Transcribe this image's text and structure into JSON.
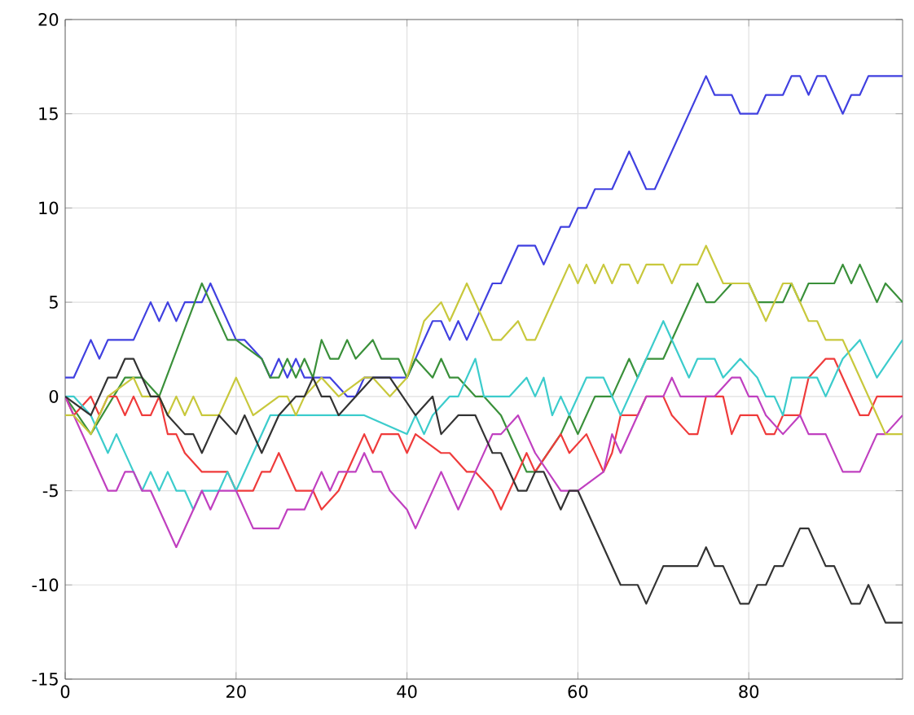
{
  "chart_data": {
    "type": "line",
    "xlim": [
      0,
      98
    ],
    "ylim": [
      -15,
      20
    ],
    "xticks": [
      0,
      20,
      40,
      60,
      80
    ],
    "yticks": [
      -15,
      -10,
      -5,
      0,
      5,
      10,
      15,
      20
    ],
    "grid": true,
    "series": [
      {
        "color": "#4040e0",
        "x": [
          0,
          1,
          3,
          4,
          5,
          8,
          10,
          11,
          12,
          13,
          14,
          16,
          17,
          20,
          21,
          23,
          24,
          25,
          26,
          27,
          28,
          31,
          33,
          34,
          35,
          40,
          43,
          44,
          45,
          46,
          47,
          50,
          51,
          53,
          55,
          56,
          58,
          59,
          60,
          61,
          62,
          64,
          66,
          68,
          69,
          75,
          76,
          78,
          79,
          81,
          82,
          84,
          85,
          86,
          87,
          88,
          89,
          91,
          92,
          93,
          94,
          98
        ],
        "values": [
          1,
          1,
          3,
          2,
          3,
          3,
          5,
          4,
          5,
          4,
          5,
          5,
          6,
          3,
          3,
          2,
          1,
          2,
          1,
          2,
          1,
          1,
          0,
          0,
          1,
          1,
          4,
          4,
          3,
          4,
          3,
          6,
          6,
          8,
          8,
          7,
          9,
          9,
          10,
          10,
          11,
          11,
          13,
          11,
          11,
          17,
          16,
          16,
          15,
          15,
          16,
          16,
          17,
          17,
          16,
          17,
          17,
          15,
          16,
          16,
          17,
          17
        ]
      },
      {
        "color": "#3a903a",
        "x": [
          0,
          3,
          7,
          9,
          11,
          16,
          18,
          19,
          20,
          23,
          24,
          25,
          26,
          27,
          28,
          29,
          30,
          31,
          32,
          33,
          34,
          36,
          37,
          39,
          40,
          41,
          43,
          44,
          45,
          46,
          48,
          49,
          51,
          53,
          54,
          55,
          58,
          59,
          60,
          62,
          64,
          65,
          66,
          67,
          68,
          70,
          74,
          75,
          76,
          78,
          80,
          81,
          84,
          85,
          86,
          87,
          90,
          91,
          92,
          93,
          95,
          96,
          98
        ],
        "values": [
          0,
          -2,
          1,
          1,
          0,
          6,
          4,
          3,
          3,
          2,
          1,
          1,
          2,
          1,
          2,
          1,
          3,
          2,
          2,
          3,
          2,
          3,
          2,
          2,
          1,
          2,
          1,
          2,
          1,
          1,
          0,
          0,
          -1,
          -3,
          -4,
          -4,
          -2,
          -1,
          -2,
          0,
          0,
          1,
          2,
          1,
          2,
          2,
          6,
          5,
          5,
          6,
          6,
          5,
          5,
          6,
          5,
          6,
          6,
          7,
          6,
          7,
          5,
          6,
          5
        ]
      },
      {
        "color": "#ef3b3b",
        "x": [
          0,
          1,
          3,
          4,
          5,
          6,
          7,
          8,
          9,
          10,
          11,
          12,
          13,
          14,
          16,
          19,
          20,
          22,
          23,
          24,
          25,
          27,
          29,
          30,
          32,
          34,
          35,
          36,
          37,
          39,
          40,
          41,
          44,
          45,
          47,
          48,
          50,
          51,
          52,
          54,
          55,
          58,
          59,
          61,
          63,
          64,
          65,
          67,
          68,
          70,
          71,
          73,
          74,
          75,
          77,
          78,
          79,
          81,
          82,
          83,
          84,
          86,
          87,
          89,
          90,
          91,
          93,
          94,
          95,
          98
        ],
        "values": [
          0,
          -1,
          0,
          -1,
          0,
          0,
          -1,
          0,
          -1,
          -1,
          0,
          -2,
          -2,
          -3,
          -4,
          -4,
          -5,
          -5,
          -4,
          -4,
          -3,
          -5,
          -5,
          -6,
          -5,
          -3,
          -2,
          -3,
          -2,
          -2,
          -3,
          -2,
          -3,
          -3,
          -4,
          -4,
          -5,
          -6,
          -5,
          -3,
          -4,
          -2,
          -3,
          -2,
          -4,
          -3,
          -1,
          -1,
          0,
          0,
          -1,
          -2,
          -2,
          0,
          0,
          -2,
          -1,
          -1,
          -2,
          -2,
          -1,
          -1,
          1,
          2,
          2,
          1,
          -1,
          -1,
          0,
          0
        ]
      },
      {
        "color": "#3ccccc",
        "x": [
          0,
          1,
          3,
          5,
          6,
          8,
          9,
          10,
          11,
          12,
          13,
          14,
          15,
          16,
          18,
          19,
          20,
          22,
          24,
          25,
          30,
          31,
          35,
          40,
          41,
          42,
          43,
          45,
          46,
          48,
          49,
          52,
          54,
          55,
          56,
          57,
          58,
          59,
          61,
          63,
          65,
          70,
          73,
          74,
          76,
          77,
          79,
          81,
          82,
          83,
          84,
          85,
          88,
          89,
          91,
          93,
          95,
          98
        ],
        "values": [
          0,
          0,
          -1,
          -3,
          -2,
          -4,
          -5,
          -4,
          -5,
          -4,
          -5,
          -5,
          -6,
          -5,
          -5,
          -4,
          -5,
          -3,
          -1,
          -1,
          -1,
          -1,
          -1,
          -2,
          -1,
          -2,
          -1,
          0,
          0,
          2,
          0,
          0,
          1,
          0,
          1,
          -1,
          0,
          -1,
          1,
          1,
          -1,
          4,
          1,
          2,
          2,
          1,
          2,
          1,
          0,
          0,
          -1,
          1,
          1,
          0,
          2,
          3,
          1,
          3
        ]
      },
      {
        "color": "#c040c0",
        "x": [
          0,
          3,
          5,
          6,
          7,
          8,
          9,
          10,
          13,
          15,
          16,
          17,
          18,
          20,
          22,
          25,
          26,
          28,
          30,
          31,
          32,
          34,
          35,
          36,
          37,
          38,
          40,
          41,
          44,
          46,
          48,
          50,
          51,
          53,
          54,
          55,
          58,
          60,
          63,
          64,
          65,
          67,
          68,
          70,
          71,
          72,
          76,
          78,
          79,
          80,
          81,
          82,
          84,
          86,
          87,
          89,
          91,
          93,
          95,
          96,
          98
        ],
        "values": [
          0,
          -3,
          -5,
          -5,
          -4,
          -4,
          -5,
          -5,
          -8,
          -6,
          -5,
          -6,
          -5,
          -5,
          -7,
          -7,
          -6,
          -6,
          -4,
          -5,
          -4,
          -4,
          -3,
          -4,
          -4,
          -5,
          -6,
          -7,
          -4,
          -6,
          -4,
          -2,
          -2,
          -1,
          -2,
          -3,
          -5,
          -5,
          -4,
          -2,
          -3,
          -1,
          0,
          0,
          1,
          0,
          0,
          1,
          1,
          0,
          0,
          -1,
          -2,
          -1,
          -2,
          -2,
          -4,
          -4,
          -2,
          -2,
          -1
        ]
      },
      {
        "color": "#c8c83c",
        "x": [
          0,
          1,
          3,
          5,
          8,
          9,
          11,
          12,
          13,
          14,
          15,
          16,
          18,
          20,
          21,
          22,
          25,
          26,
          27,
          28,
          30,
          32,
          35,
          36,
          38,
          40,
          42,
          44,
          45,
          47,
          49,
          50,
          51,
          53,
          54,
          55,
          56,
          58,
          59,
          60,
          61,
          62,
          63,
          64,
          65,
          66,
          67,
          68,
          70,
          71,
          72,
          74,
          75,
          77,
          80,
          82,
          83,
          84,
          85,
          87,
          88,
          89,
          91,
          92,
          96,
          98
        ],
        "values": [
          -1,
          -1,
          -2,
          0,
          1,
          0,
          0,
          -1,
          0,
          -1,
          0,
          -1,
          -1,
          1,
          0,
          -1,
          0,
          0,
          -1,
          0,
          1,
          0,
          1,
          1,
          0,
          1,
          4,
          5,
          4,
          6,
          4,
          3,
          3,
          4,
          3,
          3,
          4,
          6,
          7,
          6,
          7,
          6,
          7,
          6,
          7,
          7,
          6,
          7,
          7,
          6,
          7,
          7,
          8,
          6,
          6,
          4,
          5,
          6,
          6,
          4,
          4,
          3,
          3,
          2,
          -2,
          -2
        ]
      },
      {
        "color": "#333333",
        "x": [
          0,
          3,
          4,
          5,
          6,
          7,
          8,
          10,
          11,
          12,
          14,
          15,
          16,
          17,
          18,
          20,
          21,
          23,
          25,
          27,
          28,
          29,
          30,
          31,
          32,
          34,
          36,
          38,
          41,
          43,
          44,
          46,
          48,
          49,
          50,
          51,
          53,
          54,
          55,
          56,
          58,
          59,
          60,
          65,
          67,
          68,
          70,
          74,
          75,
          76,
          77,
          79,
          80,
          81,
          82,
          83,
          84,
          86,
          87,
          89,
          90,
          92,
          93,
          94,
          96,
          98
        ],
        "values": [
          0,
          -1,
          0,
          1,
          1,
          2,
          2,
          0,
          0,
          -1,
          -2,
          -2,
          -3,
          -2,
          -1,
          -2,
          -1,
          -3,
          -1,
          0,
          0,
          1,
          0,
          0,
          -1,
          0,
          1,
          1,
          -1,
          0,
          -2,
          -1,
          -1,
          -2,
          -3,
          -3,
          -5,
          -5,
          -4,
          -4,
          -6,
          -5,
          -5,
          -10,
          -10,
          -11,
          -9,
          -9,
          -8,
          -9,
          -9,
          -11,
          -11,
          -10,
          -10,
          -9,
          -9,
          -7,
          -7,
          -9,
          -9,
          -11,
          -11,
          -10,
          -12,
          -12
        ]
      }
    ]
  }
}
